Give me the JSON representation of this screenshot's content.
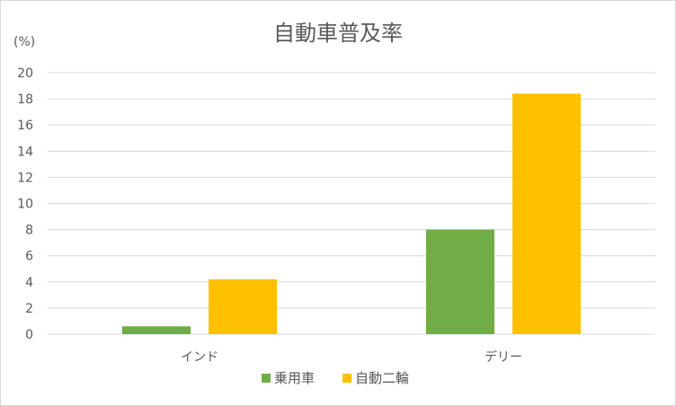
{
  "chart_data": {
    "type": "bar",
    "title": "自動車普及率",
    "unit_label": "(%)",
    "categories": [
      "インド",
      "デリー"
    ],
    "series": [
      {
        "name": "乗用車",
        "color": "#70ad47",
        "values": [
          0.6,
          8.0
        ]
      },
      {
        "name": "自動二輪",
        "color": "#ffc000",
        "values": [
          4.2,
          18.4
        ]
      }
    ],
    "ylim": [
      0,
      20
    ],
    "yticks": [
      0,
      2,
      4,
      6,
      8,
      10,
      12,
      14,
      16,
      18,
      20
    ],
    "grid": true,
    "legend_position": "bottom"
  }
}
